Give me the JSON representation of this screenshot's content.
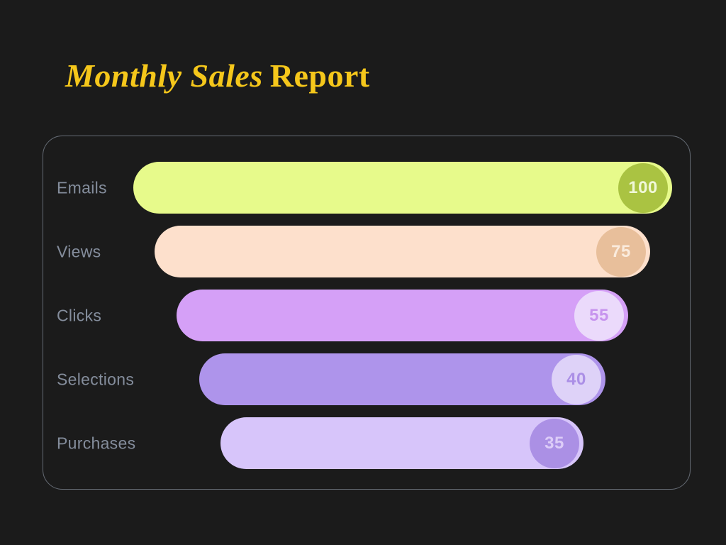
{
  "background": "#1B1B1B",
  "title": {
    "italic_part": "Monthly Sales",
    "regular_part": "Report",
    "color": "#F5C71B"
  },
  "card": {
    "border_color": "rgba(164,174,192,0.55)"
  },
  "category_label_color": "#848D9C",
  "chart_data": {
    "type": "bar",
    "subtype": "funnel",
    "orientation": "horizontal",
    "title": "Monthly Sales Report",
    "categories": [
      "Emails",
      "Views",
      "Clicks",
      "Selections",
      "Purchases"
    ],
    "values": [
      100,
      75,
      55,
      40,
      35
    ],
    "value_labels_shown": true,
    "legend_position": "none",
    "grid": false,
    "rows": [
      {
        "label": "Emails",
        "value": "100",
        "bar_color": "#E7FA8B",
        "badge_color": "#AAC342",
        "value_text_color": "#F0F8D8"
      },
      {
        "label": "Views",
        "value": "75",
        "bar_color": "#FDE0CC",
        "badge_color": "#E8BF9B",
        "value_text_color": "#FAEBDD"
      },
      {
        "label": "Clicks",
        "value": "55",
        "bar_color": "#D5A0F7",
        "badge_color": "#EBDAFB",
        "value_text_color": "#C794EE"
      },
      {
        "label": "Selections",
        "value": "40",
        "bar_color": "#AE94EB",
        "badge_color": "#DED2F8",
        "value_text_color": "#AB8FE6"
      },
      {
        "label": "Purchases",
        "value": "35",
        "bar_color": "#D7C5FA",
        "badge_color": "#AB90E5",
        "value_text_color": "#DDCDF8"
      }
    ]
  }
}
